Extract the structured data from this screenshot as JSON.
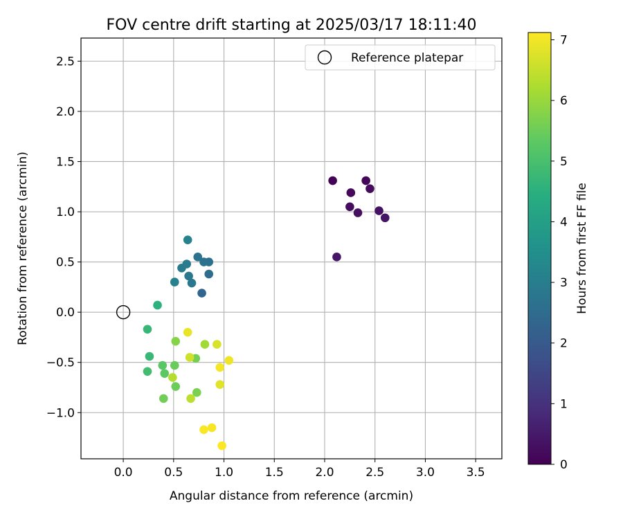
{
  "chart_data": {
    "type": "scatter",
    "title": "FOV centre drift starting at 2025/03/17 18:11:40",
    "xlabel": "Angular distance from reference (arcmin)",
    "ylabel": "Rotation from reference (arcmin)",
    "xlim": [
      -0.42,
      3.76
    ],
    "ylim": [
      -1.46,
      2.73
    ],
    "xticks": [
      0.0,
      0.5,
      1.0,
      1.5,
      2.0,
      2.5,
      3.0,
      3.5
    ],
    "yticks": [
      -1.0,
      -0.5,
      0.0,
      0.5,
      1.0,
      1.5,
      2.0,
      2.5
    ],
    "xtick_labels": [
      "0.0",
      "0.5",
      "1.0",
      "1.5",
      "2.0",
      "2.5",
      "3.0",
      "3.5"
    ],
    "ytick_labels": [
      "−1.0",
      "−0.5",
      "0.0",
      "0.5",
      "1.0",
      "1.5",
      "2.0",
      "2.5"
    ],
    "grid": true,
    "legend": {
      "position": "upper-right",
      "label": "Reference platepar"
    },
    "reference_point": {
      "x": 0.0,
      "y": 0.0
    },
    "colorbar": {
      "label": "Hours from first FF file",
      "range": [
        0,
        7.12
      ],
      "ticks": [
        0,
        1,
        2,
        3,
        4,
        5,
        6,
        7
      ],
      "tick_labels": [
        "0",
        "1",
        "2",
        "3",
        "4",
        "5",
        "6",
        "7"
      ],
      "colormap": "viridis"
    },
    "points": [
      {
        "x": 2.08,
        "y": 1.31,
        "hours": 0.05
      },
      {
        "x": 2.41,
        "y": 1.31,
        "hours": 0.1
      },
      {
        "x": 2.26,
        "y": 1.19,
        "hours": 0.15
      },
      {
        "x": 2.45,
        "y": 1.23,
        "hours": 0.2
      },
      {
        "x": 2.25,
        "y": 1.05,
        "hours": 0.25
      },
      {
        "x": 2.33,
        "y": 0.99,
        "hours": 0.3
      },
      {
        "x": 2.54,
        "y": 1.01,
        "hours": 0.35
      },
      {
        "x": 2.6,
        "y": 0.94,
        "hours": 0.4
      },
      {
        "x": 2.12,
        "y": 0.55,
        "hours": 0.45
      },
      {
        "x": 0.78,
        "y": 0.19,
        "hours": 2.3
      },
      {
        "x": 0.85,
        "y": 0.38,
        "hours": 2.5
      },
      {
        "x": 0.85,
        "y": 0.5,
        "hours": 2.6
      },
      {
        "x": 0.8,
        "y": 0.5,
        "hours": 2.65
      },
      {
        "x": 0.74,
        "y": 0.55,
        "hours": 2.7
      },
      {
        "x": 0.65,
        "y": 0.36,
        "hours": 2.8
      },
      {
        "x": 0.68,
        "y": 0.29,
        "hours": 2.85
      },
      {
        "x": 0.58,
        "y": 0.44,
        "hours": 2.9
      },
      {
        "x": 0.63,
        "y": 0.48,
        "hours": 2.95
      },
      {
        "x": 0.51,
        "y": 0.3,
        "hours": 3.1
      },
      {
        "x": 0.64,
        "y": 0.72,
        "hours": 3.15
      },
      {
        "x": 0.34,
        "y": 0.07,
        "hours": 4.5
      },
      {
        "x": 0.24,
        "y": -0.17,
        "hours": 4.7
      },
      {
        "x": 0.26,
        "y": -0.44,
        "hours": 4.75
      },
      {
        "x": 0.24,
        "y": -0.59,
        "hours": 4.9
      },
      {
        "x": 0.39,
        "y": -0.53,
        "hours": 5.25
      },
      {
        "x": 0.41,
        "y": -0.61,
        "hours": 5.3
      },
      {
        "x": 0.51,
        "y": -0.53,
        "hours": 5.45
      },
      {
        "x": 0.52,
        "y": -0.74,
        "hours": 5.5
      },
      {
        "x": 0.4,
        "y": -0.86,
        "hours": 5.55
      },
      {
        "x": 0.72,
        "y": -0.46,
        "hours": 5.6
      },
      {
        "x": 0.73,
        "y": -0.8,
        "hours": 5.65
      },
      {
        "x": 0.52,
        "y": -0.29,
        "hours": 5.8
      },
      {
        "x": 0.81,
        "y": -0.32,
        "hours": 6.1
      },
      {
        "x": 0.49,
        "y": -0.65,
        "hours": 6.3
      },
      {
        "x": 0.67,
        "y": -0.86,
        "hours": 6.4
      },
      {
        "x": 0.66,
        "y": -0.45,
        "hours": 6.6
      },
      {
        "x": 0.93,
        "y": -0.32,
        "hours": 6.7
      },
      {
        "x": 0.96,
        "y": -0.72,
        "hours": 6.8
      },
      {
        "x": 0.64,
        "y": -0.2,
        "hours": 6.9
      },
      {
        "x": 1.05,
        "y": -0.48,
        "hours": 6.95
      },
      {
        "x": 0.96,
        "y": -0.55,
        "hours": 7.0
      },
      {
        "x": 0.88,
        "y": -1.15,
        "hours": 7.05
      },
      {
        "x": 0.8,
        "y": -1.17,
        "hours": 7.08
      },
      {
        "x": 0.98,
        "y": -1.33,
        "hours": 7.12
      }
    ]
  }
}
